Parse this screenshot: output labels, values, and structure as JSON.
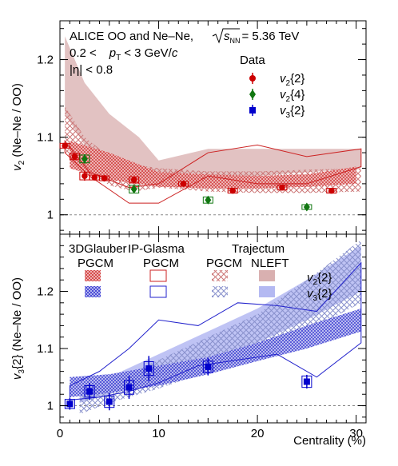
{
  "header": {
    "line1": "ALICE OO and Ne–Ne,",
    "sqrt_s_nn": "= 5.36 TeV",
    "sqrt_s_nn_symbol": "s",
    "sqrt_s_nn_sub": "NN",
    "pt_range_prefix": "0.2 <",
    "pt_symbol": "p",
    "pt_sub": "T",
    "pt_range_suffix": "< 3 GeV/",
    "pt_c": "c",
    "eta_cut": "|η| < 0.8"
  },
  "legend": {
    "data_title": "Data",
    "data_entries": [
      {
        "base": "v",
        "sub": "2",
        "rest": "{2}",
        "color": "#cc0000",
        "marker": "circle"
      },
      {
        "base": "v",
        "sub": "2",
        "rest": "{4}",
        "color": "#117711",
        "marker": "diamond"
      },
      {
        "base": "v",
        "sub": "3",
        "rest": "{2}",
        "color": "#0000cc",
        "marker": "square"
      }
    ],
    "models": [
      {
        "name": "3DGlauber",
        "variant": "PGCM",
        "style": "dense-hatch"
      },
      {
        "name": "IP-Glasma",
        "variant": "PGCM",
        "style": "open-box"
      },
      {
        "name": "Trajectum",
        "variant": "PGCM",
        "style": "cross-hatch"
      },
      {
        "name": "",
        "variant": "NLEFT",
        "style": "solid-band"
      }
    ],
    "model_rows": [
      {
        "base": "v",
        "sub": "2",
        "rest": "{2}"
      },
      {
        "base": "v",
        "sub": "3",
        "rest": "{2}"
      }
    ]
  },
  "colors": {
    "v2": "#cc0000",
    "v2_band": "#c99a9a",
    "v2_hatch": "#cc2222",
    "v4": "#117711",
    "v3": "#0000cc",
    "v3_band": "#9aa2ee",
    "v3_hatch": "#2222cc",
    "reference_line": "#888888"
  },
  "chart_data": [
    {
      "type": "line",
      "xlabel": "",
      "ylabel_base": "v",
      "ylabel_sub": "2",
      "ylabel_rest": " (Ne–Ne / OO)",
      "xlim": [
        0,
        31
      ],
      "ylim": [
        0.975,
        1.25
      ],
      "yticks": [
        1,
        1.1,
        1.2
      ],
      "ytick_labels": [
        "1",
        "1.1",
        "1.2"
      ],
      "reference_y": 1.0,
      "series": [
        {
          "name": "v2{2}",
          "marker": "circle",
          "color": "#cc0000",
          "points": [
            {
              "x": 0.5,
              "y": 1.089,
              "err": 0.003,
              "sys": 0.002
            },
            {
              "x": 1.5,
              "y": 1.075,
              "err": 0.003,
              "sys": 0.004
            },
            {
              "x": 2.5,
              "y": 1.05,
              "err": 0.006,
              "sys": 0.005
            },
            {
              "x": 3.5,
              "y": 1.048,
              "err": 0.003,
              "sys": 0.003
            },
            {
              "x": 4.5,
              "y": 1.047,
              "err": 0.004,
              "sys": 0.003
            },
            {
              "x": 7.5,
              "y": 1.045,
              "err": 0.003,
              "sys": 0.004
            },
            {
              "x": 12.5,
              "y": 1.04,
              "err": 0.002,
              "sys": 0.003
            },
            {
              "x": 17.5,
              "y": 1.031,
              "err": 0.002,
              "sys": 0.003
            },
            {
              "x": 22.5,
              "y": 1.035,
              "err": 0.002,
              "sys": 0.003
            },
            {
              "x": 27.5,
              "y": 1.031,
              "err": 0.002,
              "sys": 0.003
            }
          ]
        },
        {
          "name": "v2{4}",
          "marker": "diamond",
          "color": "#117711",
          "points": [
            {
              "x": 2.5,
              "y": 1.072,
              "err": 0.006,
              "sys": 0.005
            },
            {
              "x": 7.5,
              "y": 1.033,
              "err": 0.004,
              "sys": 0.005
            },
            {
              "x": 15,
              "y": 1.019,
              "err": 0.004,
              "sys": 0.004
            },
            {
              "x": 25,
              "y": 1.01,
              "err": 0.003,
              "sys": 0.003
            }
          ]
        },
        {
          "name": "3DGlauber PGCM",
          "band": "dense-hatch",
          "x": [
            1,
            5,
            10,
            15,
            20,
            25,
            30
          ],
          "lower": [
            1.06,
            1.045,
            1.036,
            1.034,
            1.034,
            1.036,
            1.04
          ],
          "upper": [
            1.095,
            1.08,
            1.055,
            1.052,
            1.05,
            1.052,
            1.062
          ]
        },
        {
          "name": "IP-Glasma PGCM",
          "band": "open-box",
          "x": [
            0.5,
            3,
            7,
            10,
            15,
            20,
            25,
            30.5
          ],
          "lower": [
            1.08,
            1.05,
            1.015,
            1.015,
            1.05,
            1.04,
            1.04,
            1.062
          ],
          "upper": [
            1.095,
            1.055,
            1.035,
            1.04,
            1.08,
            1.09,
            1.075,
            1.085
          ]
        },
        {
          "name": "Trajectum PGCM",
          "band": "cross-hatch",
          "x": [
            0.5,
            2.5,
            5,
            7.5,
            10,
            15,
            20,
            25,
            30.5
          ],
          "lower": [
            1.08,
            1.06,
            1.038,
            1.03,
            1.035,
            1.03,
            1.028,
            1.028,
            1.03
          ],
          "upper": [
            1.14,
            1.1,
            1.075,
            1.065,
            1.06,
            1.056,
            1.056,
            1.058,
            1.06
          ]
        },
        {
          "name": "Trajectum NLEFT",
          "band": "solid-band",
          "x": [
            0.5,
            2.5,
            5,
            8,
            10,
            15,
            20,
            25,
            30.5
          ],
          "lower": [
            1.13,
            1.09,
            1.065,
            1.05,
            1.045,
            1.045,
            1.05,
            1.055,
            1.06
          ],
          "upper": [
            1.23,
            1.17,
            1.13,
            1.1,
            1.07,
            1.085,
            1.085,
            1.085,
            1.085
          ]
        }
      ]
    },
    {
      "type": "line",
      "xlabel": "Centrality (%)",
      "ylabel_base": "v",
      "ylabel_sub": "3",
      "ylabel_rest": "{2} (Ne–Ne / OO)",
      "xlim": [
        0,
        31
      ],
      "xticks": [
        0,
        10,
        20,
        30
      ],
      "xtick_labels": [
        "0",
        "10",
        "20",
        "30"
      ],
      "ylim": [
        0.97,
        1.3
      ],
      "yticks": [
        1,
        1.1,
        1.2
      ],
      "ytick_labels": [
        "1",
        "1.1",
        "1.2"
      ],
      "reference_y": 1.0,
      "series": [
        {
          "name": "v3{2}",
          "marker": "square",
          "color": "#0000cc",
          "points": [
            {
              "x": 1,
              "y": 1.003,
              "err": 0.01,
              "sys": 0.008
            },
            {
              "x": 3,
              "y": 1.025,
              "err": 0.015,
              "sys": 0.01
            },
            {
              "x": 5,
              "y": 1.007,
              "err": 0.015,
              "sys": 0.01
            },
            {
              "x": 7,
              "y": 1.032,
              "err": 0.02,
              "sys": 0.012
            },
            {
              "x": 9,
              "y": 1.065,
              "err": 0.022,
              "sys": 0.012
            },
            {
              "x": 15,
              "y": 1.068,
              "err": 0.015,
              "sys": 0.01
            },
            {
              "x": 25,
              "y": 1.042,
              "err": 0.012,
              "sys": 0.01
            }
          ]
        },
        {
          "name": "3DGlauber PGCM",
          "band": "dense-hatch",
          "x": [
            1,
            5,
            10,
            15,
            20,
            25,
            30.5
          ],
          "lower": [
            1.015,
            1.022,
            1.035,
            1.055,
            1.078,
            1.1,
            1.13
          ],
          "upper": [
            1.05,
            1.055,
            1.07,
            1.085,
            1.11,
            1.14,
            1.17
          ]
        },
        {
          "name": "IP-Glasma PGCM",
          "band": "open-box",
          "x": [
            1,
            4,
            7,
            10,
            14,
            18,
            22,
            26,
            30.5
          ],
          "lower": [
            1.01,
            1.015,
            1.025,
            1.04,
            1.07,
            1.08,
            1.09,
            1.05,
            1.11
          ],
          "upper": [
            1.035,
            1.06,
            1.1,
            1.15,
            1.14,
            1.18,
            1.175,
            1.165,
            1.25
          ]
        },
        {
          "name": "Trajectum PGCM",
          "band": "cross-hatch",
          "x": [
            2,
            5,
            10,
            15,
            20,
            25,
            30.5
          ],
          "lower": [
            0.985,
            1.005,
            1.03,
            1.06,
            1.09,
            1.13,
            1.18
          ],
          "upper": [
            1.02,
            1.04,
            1.08,
            1.12,
            1.16,
            1.22,
            1.29
          ]
        },
        {
          "name": "Trajectum NLEFT",
          "band": "solid-band",
          "x": [
            2,
            5,
            10,
            15,
            20,
            25,
            30.5
          ],
          "lower": [
            1.005,
            1.02,
            1.05,
            1.08,
            1.11,
            1.15,
            1.2
          ],
          "upper": [
            1.03,
            1.05,
            1.09,
            1.13,
            1.17,
            1.22,
            1.28
          ]
        }
      ]
    }
  ]
}
